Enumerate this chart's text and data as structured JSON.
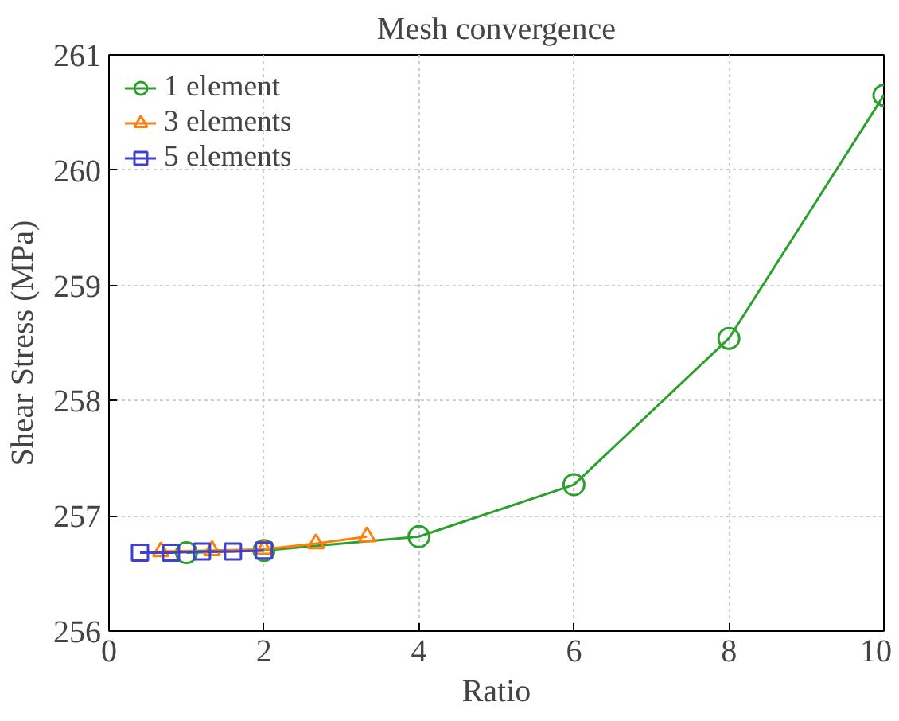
{
  "chart_data": {
    "type": "line",
    "title": "Mesh convergence",
    "xlabel": "Ratio",
    "ylabel": "Shear Stress (MPa)",
    "series": [
      {
        "name": "1 element",
        "color": "#2ca02c",
        "marker": "circle",
        "x": [
          1,
          2,
          4,
          6,
          8,
          10
        ],
        "values": [
          256.68,
          256.7,
          256.82,
          257.27,
          258.54,
          260.65
        ]
      },
      {
        "name": "3 elements",
        "color": "#ff7f0e",
        "marker": "triangle",
        "x": [
          0.67,
          1.33,
          2,
          2.67,
          3.33
        ],
        "values": [
          256.69,
          256.7,
          256.71,
          256.76,
          256.82
        ]
      },
      {
        "name": "5 elements",
        "color": "#4040d0",
        "marker": "square",
        "x": [
          0.4,
          0.8,
          1.2,
          1.6,
          2
        ],
        "values": [
          256.68,
          256.68,
          256.69,
          256.69,
          256.7
        ]
      }
    ],
    "xlim": [
      0,
      10
    ],
    "ylim": [
      256,
      261
    ],
    "xticks": [
      0,
      2,
      4,
      6,
      8,
      10
    ],
    "yticks": [
      256,
      257,
      258,
      259,
      260,
      261
    ],
    "grid": true,
    "legend": "top left"
  }
}
